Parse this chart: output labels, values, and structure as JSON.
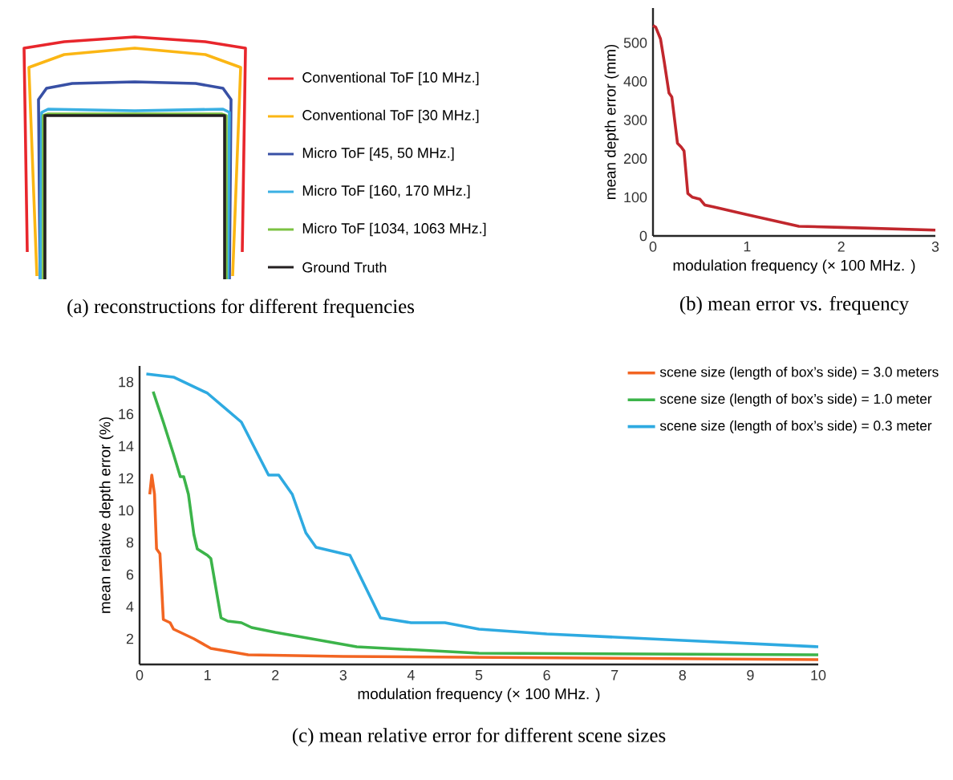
{
  "chart_data": [
    {
      "type": "other",
      "title": "(a) reconstructions for different frequencies",
      "series": [
        {
          "name": "Conventional ToF [10 MHz.]",
          "color": "#e8262c"
        },
        {
          "name": "Conventional ToF [30 MHz.]",
          "color": "#fbb614"
        },
        {
          "name": "Micro ToF [45, 50 MHz.]",
          "color": "#3850a5"
        },
        {
          "name": "Micro ToF [160, 170 MHz.]",
          "color": "#3bb0e3"
        },
        {
          "name": "Micro ToF [1034, 1063 MHz.]",
          "color": "#7cc242"
        },
        {
          "name": "Ground Truth",
          "color": "#231f20"
        }
      ]
    },
    {
      "type": "line",
      "title": "(b) mean error vs. frequency",
      "xlabel": "modulation frequency (× 100 MHz. )",
      "ylabel": "mean depth error (mm)",
      "xlim": [
        0,
        3
      ],
      "ylim": [
        0,
        590
      ],
      "xticks": [
        0,
        1,
        2,
        3
      ],
      "yticks": [
        0,
        100,
        200,
        300,
        400,
        500
      ],
      "series": [
        {
          "color": "#c1272d",
          "x": [
            0,
            0.03,
            0.08,
            0.12,
            0.17,
            0.2,
            0.23,
            0.26,
            0.3,
            0.33,
            0.37,
            0.42,
            0.5,
            0.55,
            0.65,
            1.0,
            1.55,
            2,
            3
          ],
          "values": [
            545,
            540,
            510,
            450,
            370,
            360,
            300,
            240,
            230,
            220,
            110,
            100,
            95,
            80,
            75,
            55,
            25,
            22,
            15
          ]
        }
      ]
    },
    {
      "type": "line",
      "title": "(c) mean relative error for different scene sizes",
      "xlabel": "modulation frequency (× 100 MHz. )",
      "ylabel": "mean relative depth error (%)",
      "xlim": [
        0,
        10
      ],
      "ylim": [
        0.4,
        19
      ],
      "xticks": [
        0,
        1,
        2,
        3,
        4,
        5,
        6,
        7,
        8,
        9,
        10
      ],
      "yticks": [
        2,
        4,
        6,
        8,
        10,
        12,
        14,
        16,
        18
      ],
      "legend": "top right",
      "series": [
        {
          "name": "scene size (length of box’s side) = 3.0 meters",
          "color": "#f26522",
          "x": [
            0.15,
            0.18,
            0.22,
            0.25,
            0.3,
            0.35,
            0.45,
            0.5,
            0.8,
            1.05,
            1.6,
            3,
            10
          ],
          "values": [
            11,
            12.2,
            11,
            7.6,
            7.3,
            3.2,
            3.0,
            2.6,
            2.0,
            1.4,
            1.0,
            0.9,
            0.7
          ]
        },
        {
          "name": "scene size (length of box’s side) = 1.0 meter",
          "color": "#3cb44a",
          "x": [
            0.2,
            0.35,
            0.5,
            0.6,
            0.65,
            0.72,
            0.8,
            0.85,
            1.0,
            1.05,
            1.2,
            1.3,
            1.5,
            1.65,
            2.0,
            3.2,
            5,
            10
          ],
          "values": [
            17.4,
            15.5,
            13.5,
            12.1,
            12.1,
            11,
            8.5,
            7.6,
            7.2,
            7,
            3.3,
            3.1,
            3.0,
            2.7,
            2.4,
            1.5,
            1.1,
            1.0
          ]
        },
        {
          "name": "scene size (length of box’s side) = 0.3 meter",
          "color": "#2eaae1",
          "x": [
            0.1,
            0.5,
            1,
            1.5,
            1.9,
            2.05,
            2.25,
            2.45,
            2.6,
            3.1,
            3.55,
            4.0,
            4.5,
            5,
            6,
            8,
            10
          ],
          "values": [
            18.5,
            18.3,
            17.3,
            15.5,
            12.2,
            12.2,
            11,
            8.6,
            7.7,
            7.2,
            3.3,
            3.0,
            3.0,
            2.6,
            2.3,
            1.9,
            1.5
          ]
        }
      ]
    }
  ]
}
